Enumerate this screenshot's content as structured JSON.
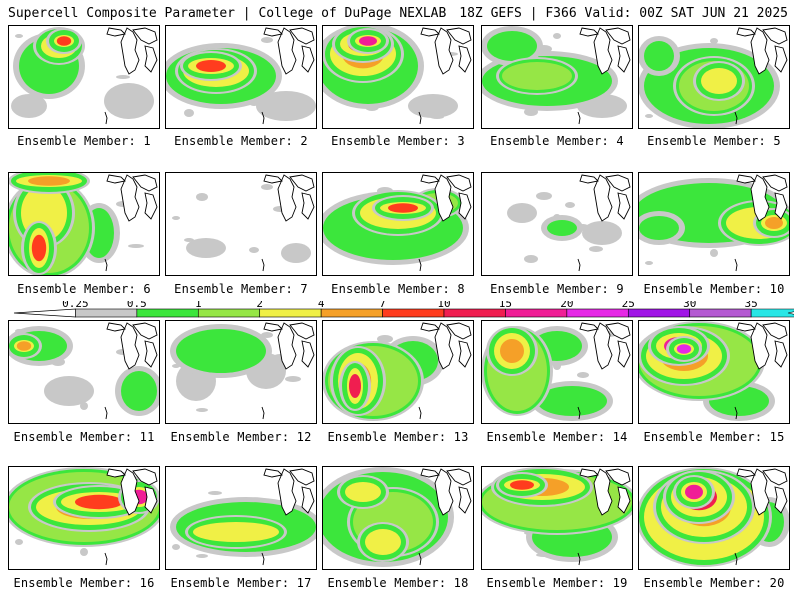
{
  "header": {
    "title": "Supercell Composite Parameter | College of DuPage NEXLAB",
    "run_info": "18Z GEFS | F366 Valid: 00Z SAT JUN 21 2025"
  },
  "colorbar": {
    "levels": [
      "0.25",
      "0.5",
      "1",
      "2",
      "4",
      "7",
      "10",
      "15",
      "20",
      "25",
      "30",
      "35"
    ],
    "colors": [
      "#c8c8c8",
      "#3ce63c",
      "#96e646",
      "#f0f046",
      "#f5a028",
      "#ff3c1e",
      "#f01e50",
      "#f01e96",
      "#e628e6",
      "#a014e6",
      "#b45ad2",
      "#28e6e6"
    ]
  },
  "members": [
    {
      "label": "Ensemble Member: 1",
      "blobs": [
        [
          40,
          40,
          30,
          28,
          1
        ],
        [
          50,
          20,
          20,
          14,
          3
        ],
        [
          55,
          15,
          12,
          8,
          5
        ],
        [
          120,
          75,
          25,
          18,
          0
        ],
        [
          20,
          80,
          18,
          12,
          0
        ]
      ]
    },
    {
      "label": "Ensemble Member: 2",
      "blobs": [
        [
          55,
          50,
          55,
          28,
          1
        ],
        [
          50,
          45,
          35,
          18,
          3
        ],
        [
          45,
          40,
          25,
          10,
          5
        ],
        [
          120,
          80,
          30,
          15,
          0
        ]
      ]
    },
    {
      "label": "Ensemble Member: 3",
      "blobs": [
        [
          45,
          40,
          50,
          38,
          1
        ],
        [
          40,
          28,
          35,
          24,
          4
        ],
        [
          40,
          18,
          25,
          14,
          6
        ],
        [
          45,
          15,
          15,
          8,
          7
        ],
        [
          110,
          80,
          25,
          12,
          0
        ]
      ]
    },
    {
      "label": "Ensemble Member: 4",
      "blobs": [
        [
          65,
          55,
          65,
          25,
          1
        ],
        [
          55,
          50,
          35,
          14,
          2
        ],
        [
          30,
          20,
          25,
          15,
          1
        ],
        [
          120,
          80,
          25,
          12,
          0
        ]
      ]
    },
    {
      "label": "Ensemble Member: 5",
      "blobs": [
        [
          70,
          60,
          65,
          38,
          1
        ],
        [
          75,
          60,
          35,
          25,
          2
        ],
        [
          80,
          55,
          20,
          15,
          3
        ],
        [
          20,
          30,
          15,
          15,
          1
        ]
      ]
    },
    {
      "label": "Ensemble Member: 6",
      "blobs": [
        [
          40,
          55,
          40,
          45,
          2
        ],
        [
          35,
          40,
          25,
          30,
          3
        ],
        [
          30,
          75,
          12,
          22,
          5
        ],
        [
          40,
          8,
          35,
          8,
          4
        ],
        [
          90,
          60,
          15,
          25,
          1
        ]
      ]
    },
    {
      "label": "Ensemble Member: 7",
      "blobs": [
        [
          40,
          75,
          20,
          10,
          0
        ],
        [
          130,
          80,
          15,
          10,
          0
        ]
      ]
    },
    {
      "label": "Ensemble Member: 8",
      "blobs": [
        [
          70,
          55,
          70,
          32,
          1
        ],
        [
          75,
          40,
          40,
          18,
          3
        ],
        [
          80,
          35,
          25,
          8,
          5
        ],
        [
          115,
          30,
          20,
          10,
          2
        ]
      ]
    },
    {
      "label": "Ensemble Member: 9",
      "blobs": [
        [
          80,
          55,
          15,
          8,
          1
        ],
        [
          40,
          40,
          15,
          10,
          0
        ],
        [
          120,
          60,
          20,
          12,
          0
        ]
      ]
    },
    {
      "label": "Ensemble Member: 10",
      "blobs": [
        [
          70,
          40,
          75,
          30,
          1
        ],
        [
          120,
          50,
          35,
          18,
          3
        ],
        [
          135,
          50,
          15,
          10,
          4
        ],
        [
          20,
          55,
          20,
          12,
          1
        ]
      ]
    },
    {
      "label": "Ensemble Member: 11",
      "blobs": [
        [
          30,
          25,
          28,
          15,
          1
        ],
        [
          15,
          25,
          12,
          8,
          4
        ],
        [
          60,
          70,
          25,
          15,
          0
        ],
        [
          130,
          70,
          18,
          20,
          1
        ]
      ]
    },
    {
      "label": "Ensemble Member: 12",
      "blobs": [
        [
          55,
          30,
          45,
          22,
          1
        ],
        [
          30,
          60,
          20,
          20,
          0
        ],
        [
          100,
          50,
          20,
          18,
          0
        ]
      ]
    },
    {
      "label": "Ensemble Member: 13",
      "blobs": [
        [
          50,
          60,
          45,
          35,
          2
        ],
        [
          35,
          60,
          22,
          30,
          4
        ],
        [
          32,
          65,
          10,
          20,
          6
        ],
        [
          90,
          40,
          25,
          20,
          1
        ]
      ]
    },
    {
      "label": "Ensemble Member: 14",
      "blobs": [
        [
          35,
          50,
          30,
          40,
          2
        ],
        [
          30,
          30,
          20,
          20,
          4
        ],
        [
          75,
          25,
          25,
          15,
          1
        ],
        [
          90,
          80,
          35,
          15,
          1
        ]
      ]
    },
    {
      "label": "Ensemble Member: 15",
      "blobs": [
        [
          60,
          40,
          60,
          35,
          2
        ],
        [
          45,
          35,
          40,
          25,
          4
        ],
        [
          40,
          25,
          25,
          15,
          7
        ],
        [
          45,
          28,
          12,
          8,
          8
        ],
        [
          100,
          80,
          30,
          15,
          1
        ]
      ]
    },
    {
      "label": "Ensemble Member: 16",
      "blobs": [
        [
          75,
          40,
          75,
          35,
          2
        ],
        [
          80,
          40,
          55,
          20,
          4
        ],
        [
          90,
          35,
          40,
          12,
          5
        ],
        [
          130,
          30,
          15,
          12,
          7
        ]
      ]
    },
    {
      "label": "Ensemble Member: 17",
      "blobs": [
        [
          80,
          60,
          70,
          25,
          1
        ],
        [
          70,
          65,
          45,
          12,
          3
        ],
        [
          60,
          70,
          25,
          6,
          2
        ]
      ]
    },
    {
      "label": "Ensemble Member: 18",
      "blobs": [
        [
          60,
          50,
          65,
          45,
          1
        ],
        [
          70,
          55,
          40,
          30,
          2
        ],
        [
          60,
          75,
          20,
          15,
          3
        ],
        [
          40,
          25,
          20,
          12,
          3
        ]
      ]
    },
    {
      "label": "Ensemble Member: 19",
      "blobs": [
        [
          75,
          35,
          75,
          28,
          2
        ],
        [
          60,
          20,
          45,
          15,
          4
        ],
        [
          40,
          18,
          20,
          8,
          5
        ],
        [
          90,
          70,
          40,
          20,
          1
        ]
      ]
    },
    {
      "label": "Ensemble Member: 20",
      "blobs": [
        [
          65,
          50,
          62,
          45,
          3
        ],
        [
          65,
          40,
          45,
          32,
          4
        ],
        [
          60,
          30,
          30,
          22,
          6
        ],
        [
          55,
          25,
          15,
          12,
          7
        ],
        [
          130,
          55,
          15,
          20,
          1
        ]
      ]
    }
  ]
}
